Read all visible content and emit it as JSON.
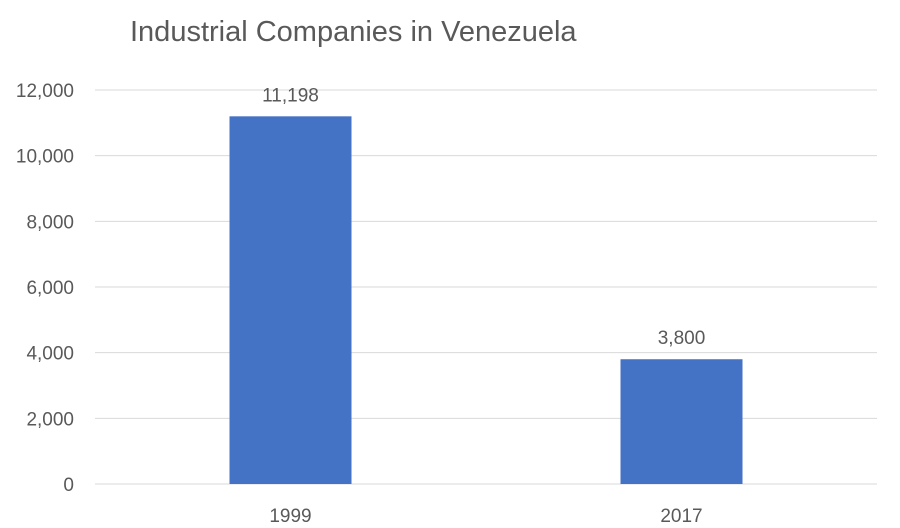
{
  "chart_data": {
    "type": "bar",
    "title": "Industrial Companies in Venezuela",
    "categories": [
      "1999",
      "2017"
    ],
    "values": [
      11198,
      3800
    ],
    "data_labels": [
      "11,198",
      "3,800"
    ],
    "xlabel": "",
    "ylabel": "",
    "ylim": [
      0,
      12000
    ],
    "yticks": [
      0,
      2000,
      4000,
      6000,
      8000,
      10000,
      12000
    ],
    "ytick_labels": [
      "0",
      "2,000",
      "4,000",
      "6,000",
      "8,000",
      "10,000",
      "12,000"
    ],
    "grid": true,
    "legend": "none",
    "colors": {
      "bar": "#4472C4",
      "grid": "#D9D9D9",
      "text": "#595959"
    }
  }
}
